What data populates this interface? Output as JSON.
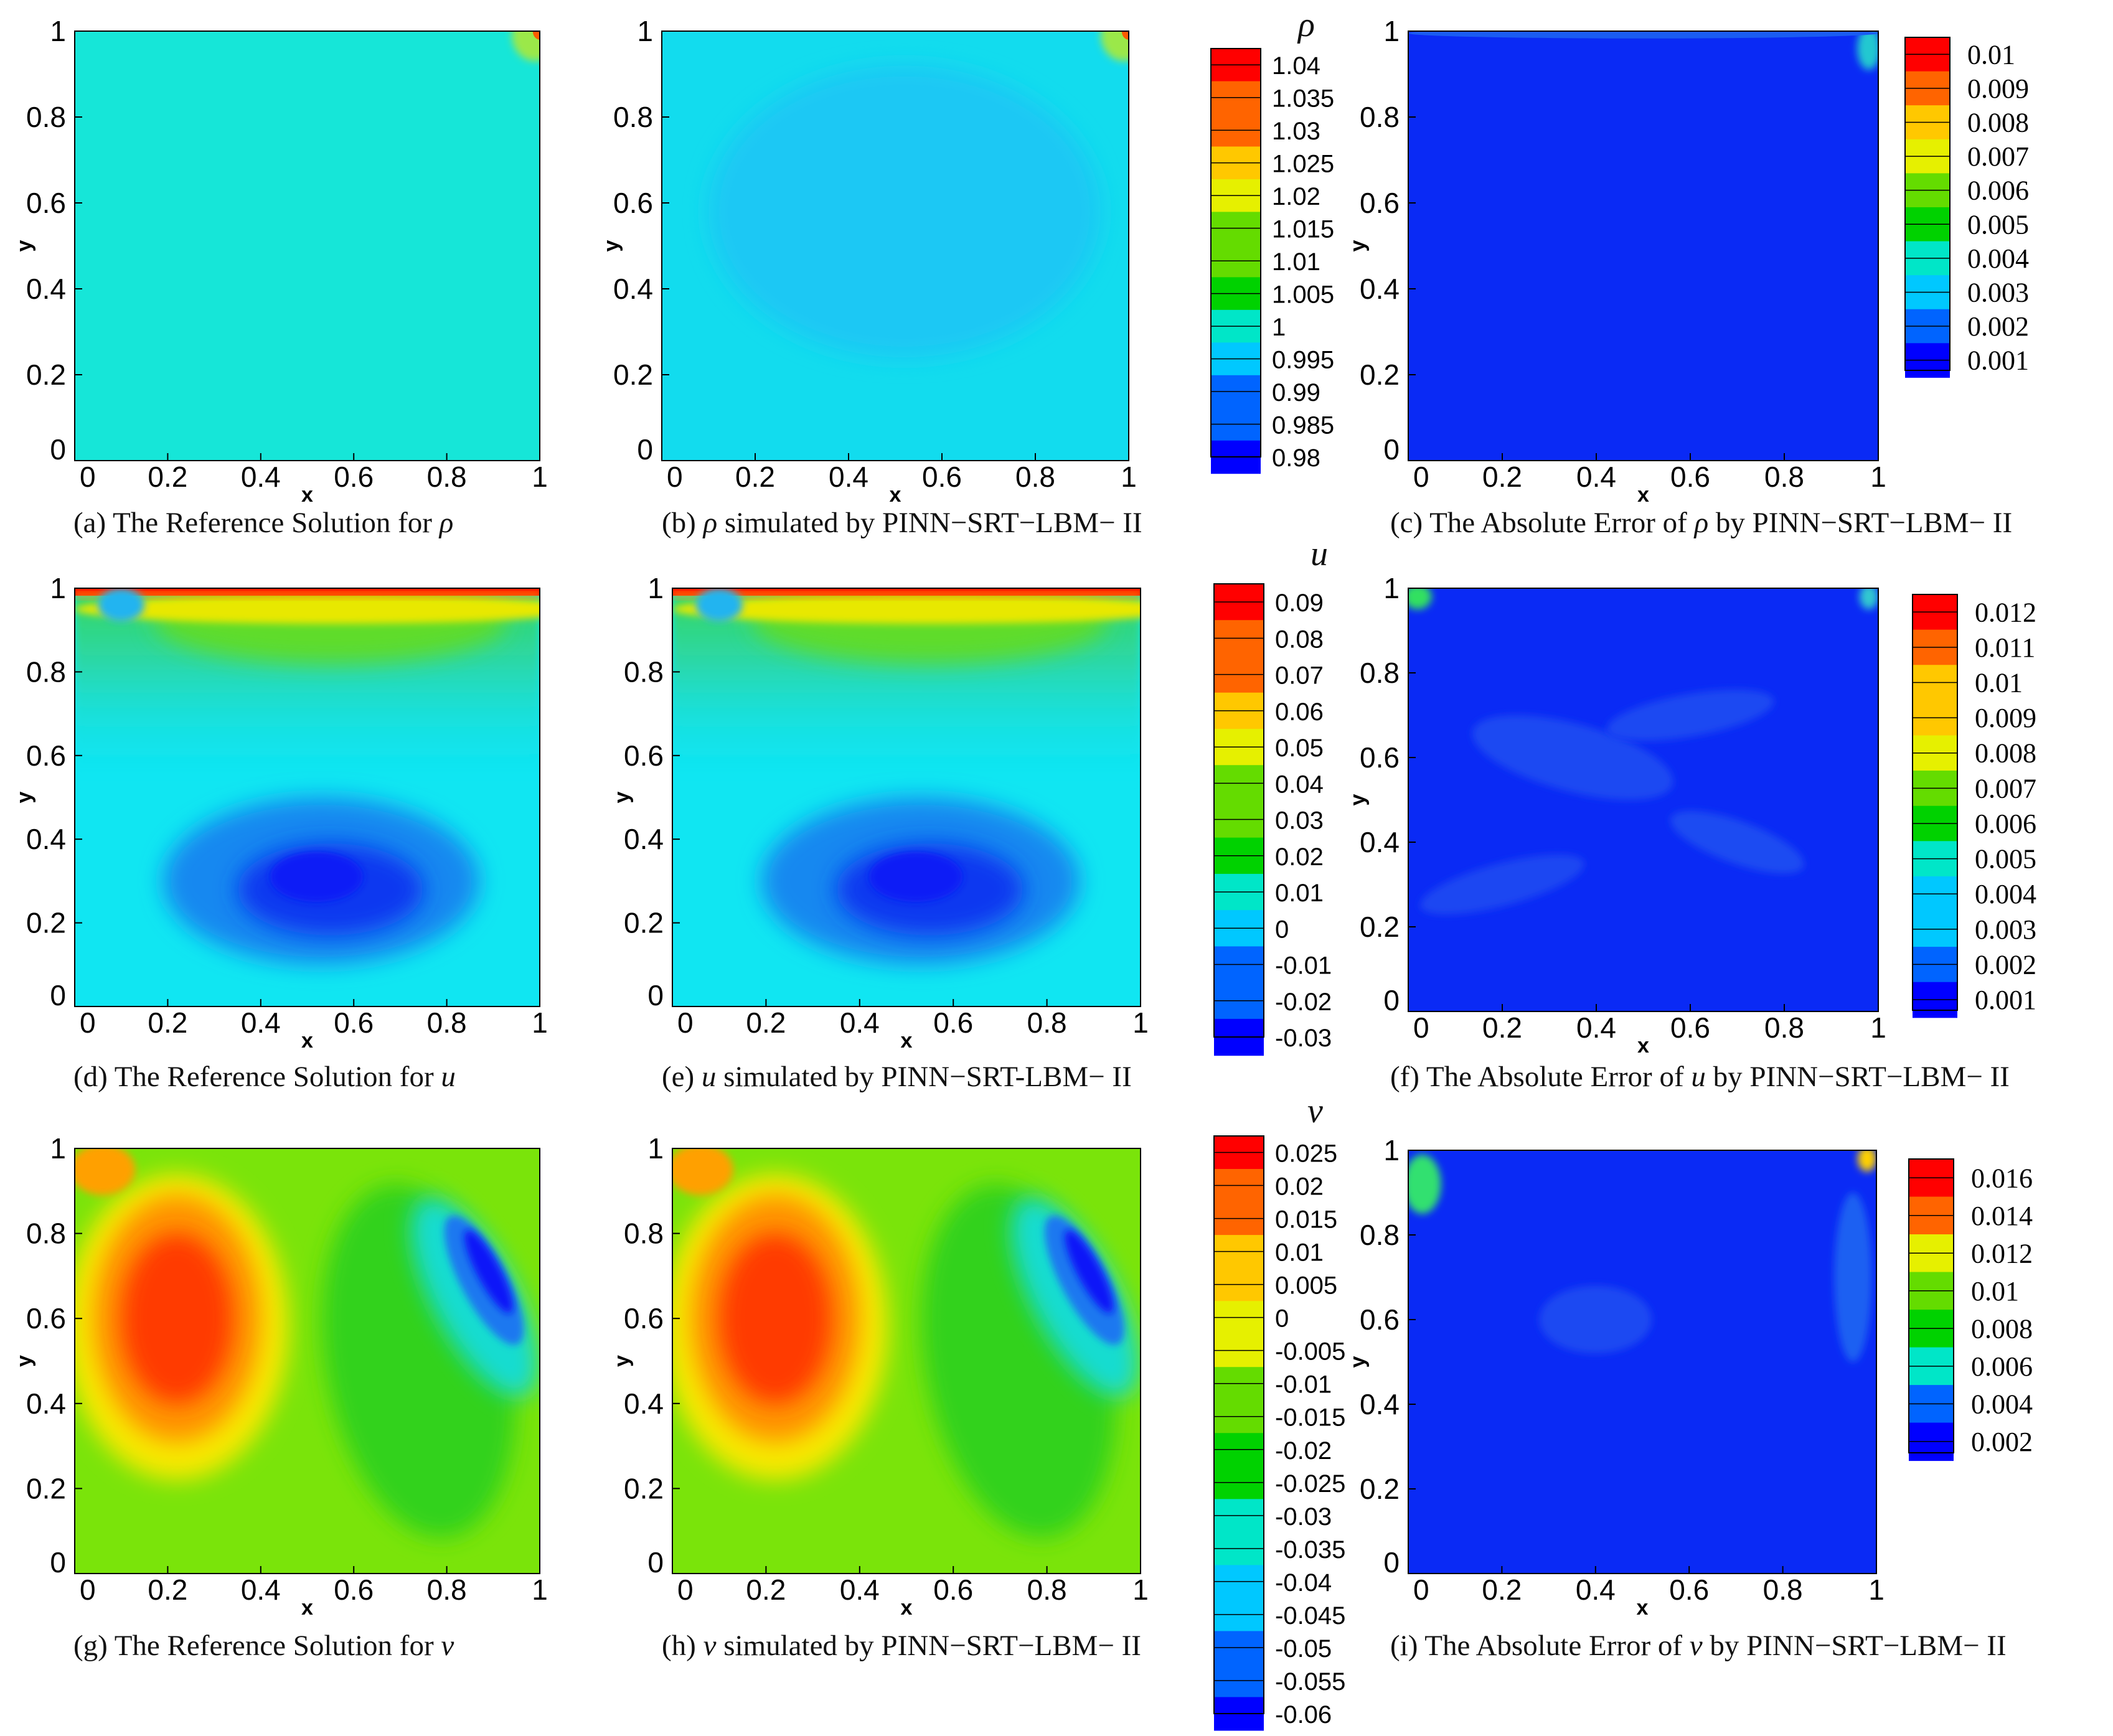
{
  "figure": {
    "rows": [
      {
        "variable": "ρ",
        "colorbar_title": "ρ",
        "captions": [
          {
            "prefix": "(a) The Reference Solution for ",
            "var": "ρ",
            "suffix": ""
          },
          {
            "prefix": "(b) ",
            "var": "ρ",
            "suffix": " simulated by PINN−SRT−LBM− II"
          },
          {
            "prefix": "(c) The Absolute Error of ",
            "var": "ρ",
            "suffix": " by PINN−SRT−LBM− II"
          }
        ],
        "colorbar_ticks": [
          "1.04",
          "1.035",
          "1.03",
          "1.025",
          "1.02",
          "1.015",
          "1.01",
          "1.005",
          "1",
          "0.995",
          "0.99",
          "0.985",
          "0.98"
        ],
        "error_colorbar_ticks": [
          "0.01",
          "0.009",
          "0.008",
          "0.007",
          "0.006",
          "0.005",
          "0.004",
          "0.003",
          "0.002",
          "0.001"
        ]
      },
      {
        "variable": "u",
        "colorbar_title": "u",
        "captions": [
          {
            "prefix": "(d) The Reference Solution for ",
            "var": "u",
            "suffix": ""
          },
          {
            "prefix": "(e) ",
            "var": "u",
            "suffix": " simulated by PINN−SRT-LBM− II"
          },
          {
            "prefix": "(f) The Absolute Error of ",
            "var": "u",
            "suffix": " by PINN−SRT−LBM− II"
          }
        ],
        "colorbar_ticks": [
          "0.09",
          "0.08",
          "0.07",
          "0.06",
          "0.05",
          "0.04",
          "0.03",
          "0.02",
          "0.01",
          "0",
          "-0.01",
          "-0.02",
          "-0.03"
        ],
        "error_colorbar_ticks": [
          "0.012",
          "0.011",
          "0.01",
          "0.009",
          "0.008",
          "0.007",
          "0.006",
          "0.005",
          "0.004",
          "0.003",
          "0.002",
          "0.001"
        ]
      },
      {
        "variable": "v",
        "colorbar_title": "v",
        "captions": [
          {
            "prefix": "(g) The Reference Solution for ",
            "var": "v",
            "suffix": ""
          },
          {
            "prefix": "(h) ",
            "var": "v",
            "suffix": " simulated by PINN−SRT−LBM− II"
          },
          {
            "prefix": "(i) The Absolute Error of ",
            "var": "v",
            "suffix": " by PINN−SRT−LBM− II"
          }
        ],
        "colorbar_ticks": [
          "0.025",
          "0.02",
          "0.015",
          "0.01",
          "0.005",
          "0",
          "-0.005",
          "-0.01",
          "-0.015",
          "-0.02",
          "-0.025",
          "-0.03",
          "-0.035",
          "-0.04",
          "-0.045",
          "-0.05",
          "-0.055",
          "-0.06"
        ],
        "error_colorbar_ticks": [
          "0.016",
          "0.014",
          "0.012",
          "0.01",
          "0.008",
          "0.006",
          "0.004",
          "0.002"
        ]
      }
    ],
    "x_axis_label": "x",
    "y_axis_label": "y",
    "axis_tick_labels": [
      "0",
      "0.2",
      "0.4",
      "0.6",
      "0.8",
      "1"
    ],
    "colormap": [
      "#0000ff",
      "#0064ff",
      "#00c8ff",
      "#00e6c8",
      "#00d200",
      "#64dc00",
      "#e6f000",
      "#ffc800",
      "#ff6400",
      "#ff0000"
    ]
  },
  "chart_data": [
    {
      "type": "heatmap",
      "panel": "a",
      "field": "rho",
      "kind": "reference",
      "xlim": [
        0,
        1
      ],
      "ylim": [
        0,
        1
      ],
      "colorbar_range": [
        0.98,
        1.04
      ],
      "dominant_value": 0.995,
      "features": [
        "corner-peak-top-right"
      ]
    },
    {
      "type": "heatmap",
      "panel": "b",
      "field": "rho",
      "kind": "simulated",
      "xlim": [
        0,
        1
      ],
      "ylim": [
        0,
        1
      ],
      "colorbar_range": [
        0.98,
        1.04
      ],
      "dominant_value": 0.993,
      "features": [
        "corner-peak-top-right",
        "central-low"
      ]
    },
    {
      "type": "heatmap",
      "panel": "c",
      "field": "rho",
      "kind": "absolute-error",
      "xlim": [
        0,
        1
      ],
      "ylim": [
        0,
        1
      ],
      "colorbar_range": [
        0.001,
        0.01
      ],
      "max_error_location": "top-right corner"
    },
    {
      "type": "heatmap",
      "panel": "d",
      "field": "u",
      "kind": "reference",
      "xlim": [
        0,
        1
      ],
      "ylim": [
        0,
        1
      ],
      "colorbar_range": [
        -0.03,
        0.09
      ],
      "max_value": 0.09,
      "min_value": -0.03,
      "features": [
        "lid-max-at-top",
        "vortex-min-near-(0.55,0.3)"
      ]
    },
    {
      "type": "heatmap",
      "panel": "e",
      "field": "u",
      "kind": "simulated",
      "xlim": [
        0,
        1
      ],
      "ylim": [
        0,
        1
      ],
      "colorbar_range": [
        -0.03,
        0.09
      ],
      "max_value": 0.09,
      "min_value": -0.03,
      "features": [
        "lid-max-at-top",
        "vortex-min-near-(0.55,0.3)"
      ]
    },
    {
      "type": "heatmap",
      "panel": "f",
      "field": "u",
      "kind": "absolute-error",
      "xlim": [
        0,
        1
      ],
      "ylim": [
        0,
        1
      ],
      "colorbar_range": [
        0.001,
        0.012
      ],
      "max_error_location": "top corners"
    },
    {
      "type": "heatmap",
      "panel": "g",
      "field": "v",
      "kind": "reference",
      "xlim": [
        0,
        1
      ],
      "ylim": [
        0,
        1
      ],
      "colorbar_range": [
        -0.06,
        0.025
      ],
      "max_value": 0.025,
      "min_value": -0.06,
      "features": [
        "positive-lobe-near-(0.22,0.6)",
        "negative-lobe-near-(0.9,0.7)"
      ]
    },
    {
      "type": "heatmap",
      "panel": "h",
      "field": "v",
      "kind": "simulated",
      "xlim": [
        0,
        1
      ],
      "ylim": [
        0,
        1
      ],
      "colorbar_range": [
        -0.06,
        0.025
      ],
      "max_value": 0.025,
      "min_value": -0.06,
      "features": [
        "positive-lobe-near-(0.22,0.6)",
        "negative-lobe-near-(0.9,0.7)"
      ]
    },
    {
      "type": "heatmap",
      "panel": "i",
      "field": "v",
      "kind": "absolute-error",
      "xlim": [
        0,
        1
      ],
      "ylim": [
        0,
        1
      ],
      "colorbar_range": [
        0.002,
        0.016
      ],
      "max_error_location": "top corners"
    }
  ]
}
